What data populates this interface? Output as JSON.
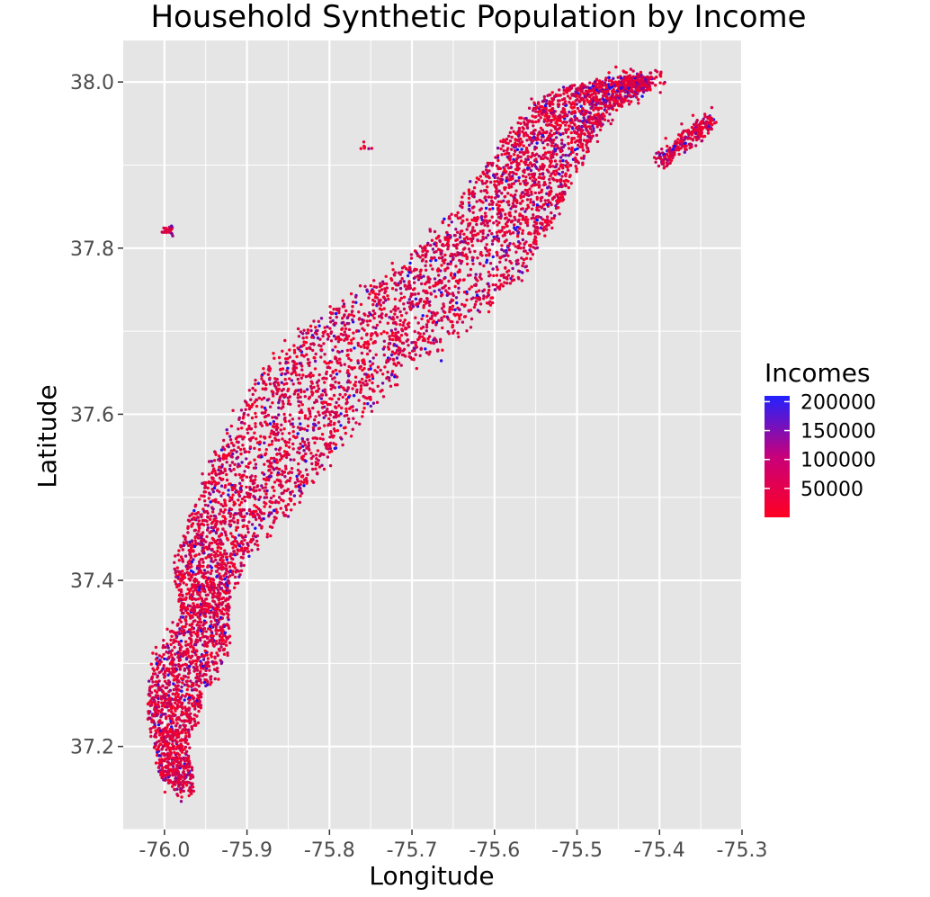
{
  "chart_data": {
    "type": "scatter",
    "title": "Household Synthetic Population by Income",
    "xlabel": "Longitude",
    "ylabel": "Latitude",
    "xlim": [
      -76.05,
      -75.3
    ],
    "ylim": [
      37.1,
      38.05
    ],
    "x_ticks": [
      -76.0,
      -75.9,
      -75.8,
      -75.7,
      -75.6,
      -75.5,
      -75.4,
      -75.3
    ],
    "x_tick_labels": [
      "-76.0",
      "-75.9",
      "-75.8",
      "-75.7",
      "-75.6",
      "-75.5",
      "-75.4",
      "-75.3"
    ],
    "y_ticks": [
      37.2,
      37.4,
      37.6,
      37.8,
      38.0
    ],
    "y_tick_labels": [
      "37.2",
      "37.4",
      "37.6",
      "37.8",
      "38.0"
    ],
    "grid": true,
    "panel_background": "#e5e5e5",
    "legend": {
      "title": "Incomes",
      "position": "right",
      "labels": [
        "200000",
        "150000",
        "100000",
        "50000"
      ],
      "values": [
        200000,
        150000,
        100000,
        50000
      ],
      "min": 0,
      "max": 210000,
      "color_low": "#ff0022",
      "color_high": "#2222ff"
    },
    "point_color_low": "#ff0022",
    "point_color_high": "#1010ff",
    "point_count": 6000,
    "income_distribution_note_share_high": 0.04,
    "clusters": [
      {
        "lon": -75.99,
        "lat": 37.18,
        "income_mean": 50000,
        "density": "high"
      },
      {
        "lon": -75.99,
        "lat": 37.27,
        "income_mean": 50000,
        "density": "high"
      },
      {
        "lon": -75.95,
        "lat": 37.35,
        "income_mean": 50000,
        "density": "high"
      },
      {
        "lon": -75.96,
        "lat": 37.42,
        "income_mean": 50000,
        "density": "high"
      },
      {
        "lon": -75.92,
        "lat": 37.5,
        "income_mean": 50000,
        "density": "high"
      },
      {
        "lon": -75.86,
        "lat": 37.56,
        "income_mean": 50000,
        "density": "high"
      },
      {
        "lon": -75.82,
        "lat": 37.66,
        "income_mean": 50000,
        "density": "high"
      },
      {
        "lon": -75.74,
        "lat": 37.7,
        "income_mean": 50000,
        "density": "high"
      },
      {
        "lon": -75.65,
        "lat": 37.78,
        "income_mean": 50000,
        "density": "high"
      },
      {
        "lon": -75.58,
        "lat": 37.87,
        "income_mean": 50000,
        "density": "high"
      },
      {
        "lon": -75.5,
        "lat": 37.96,
        "income_mean": 50000,
        "density": "high"
      },
      {
        "lon": -75.42,
        "lat": 38.0,
        "income_mean": 50000,
        "density": "high"
      },
      {
        "lon": -75.37,
        "lat": 37.93,
        "income_mean": 50000,
        "density": "high"
      },
      {
        "lon": -75.99,
        "lat": 37.82,
        "income_mean": 50000,
        "density": "low"
      },
      {
        "lon": -75.75,
        "lat": 37.92,
        "income_mean": 50000,
        "density": "low"
      }
    ]
  }
}
